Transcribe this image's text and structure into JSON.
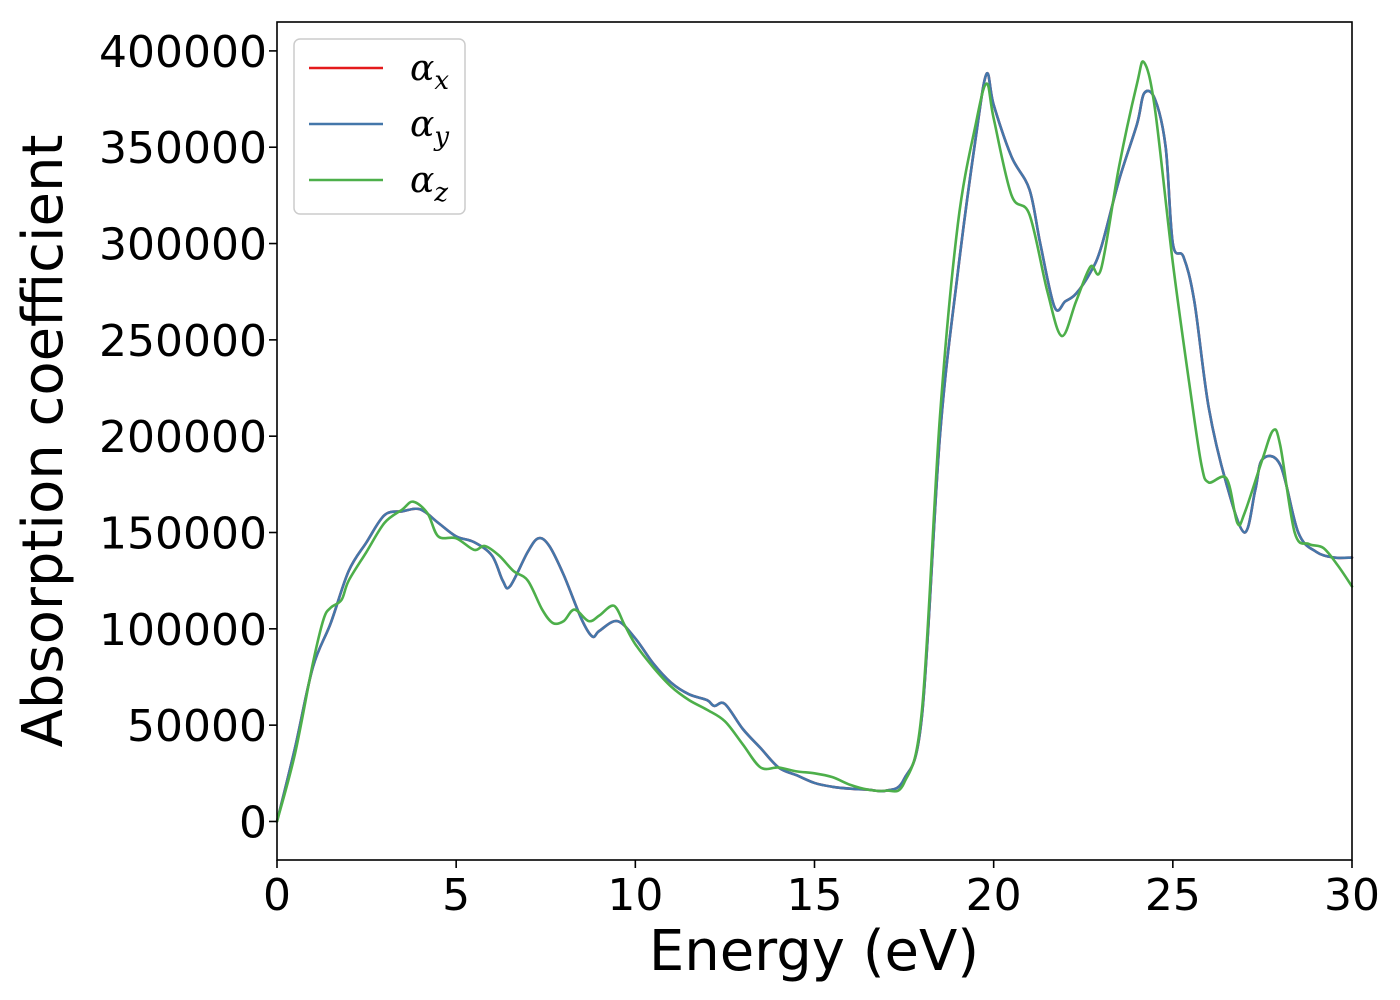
{
  "chart_data": {
    "type": "line",
    "xlabel": "Energy (eV)",
    "ylabel": "Absorption coefficient",
    "xlim": [
      0,
      30
    ],
    "ylim": [
      -20000,
      415000
    ],
    "xticks": [
      0,
      5,
      10,
      15,
      20,
      25,
      30
    ],
    "xtick_labels": [
      "0",
      "5",
      "10",
      "15",
      "20",
      "25",
      "30"
    ],
    "yticks": [
      0,
      50000,
      100000,
      150000,
      200000,
      250000,
      300000,
      350000,
      400000
    ],
    "ytick_labels": [
      "0",
      "50000",
      "100000",
      "150000",
      "200000",
      "250000",
      "300000",
      "350000",
      "400000"
    ],
    "grid": false,
    "legend_position": "top-left",
    "series": [
      {
        "name": "α_x",
        "legend_base": "α",
        "legend_sub": "x",
        "color": "#e41a1c",
        "points": [
          [
            0,
            0
          ],
          [
            0.5,
            38000
          ],
          [
            1,
            80000
          ],
          [
            1.5,
            103000
          ],
          [
            2,
            130000
          ],
          [
            2.5,
            145000
          ],
          [
            3,
            159000
          ],
          [
            3.5,
            161000
          ],
          [
            4,
            162000
          ],
          [
            4.5,
            155000
          ],
          [
            5,
            148000
          ],
          [
            5.5,
            145000
          ],
          [
            6,
            138000
          ],
          [
            6.3,
            125000
          ],
          [
            6.5,
            122000
          ],
          [
            7,
            140000
          ],
          [
            7.3,
            147000
          ],
          [
            7.6,
            143000
          ],
          [
            8,
            128000
          ],
          [
            8.5,
            105000
          ],
          [
            8.8,
            96000
          ],
          [
            9,
            99000
          ],
          [
            9.5,
            104000
          ],
          [
            10,
            95000
          ],
          [
            10.5,
            82000
          ],
          [
            11,
            72000
          ],
          [
            11.5,
            66000
          ],
          [
            12,
            63000
          ],
          [
            12.2,
            60000
          ],
          [
            12.5,
            61000
          ],
          [
            13,
            48000
          ],
          [
            13.5,
            38000
          ],
          [
            14,
            28000
          ],
          [
            14.5,
            24000
          ],
          [
            15,
            20000
          ],
          [
            15.5,
            18000
          ],
          [
            16,
            17000
          ],
          [
            16.5,
            16500
          ],
          [
            17,
            16000
          ],
          [
            17.5,
            22000
          ],
          [
            18,
            55000
          ],
          [
            18.5,
            200000
          ],
          [
            19,
            285000
          ],
          [
            19.5,
            355000
          ],
          [
            19.8,
            388000
          ],
          [
            20,
            372000
          ],
          [
            20.5,
            345000
          ],
          [
            21,
            328000
          ],
          [
            21.3,
            300000
          ],
          [
            21.7,
            267000
          ],
          [
            22,
            270000
          ],
          [
            22.3,
            274000
          ],
          [
            22.7,
            285000
          ],
          [
            23,
            298000
          ],
          [
            23.5,
            333000
          ],
          [
            24,
            362000
          ],
          [
            24.2,
            378000
          ],
          [
            24.5,
            375000
          ],
          [
            24.8,
            350000
          ],
          [
            25,
            300000
          ],
          [
            25.3,
            293000
          ],
          [
            25.6,
            270000
          ],
          [
            26,
            215000
          ],
          [
            26.5,
            175000
          ],
          [
            27,
            150000
          ],
          [
            27.3,
            172000
          ],
          [
            27.5,
            188000
          ],
          [
            28,
            185000
          ],
          [
            28.5,
            150000
          ],
          [
            29,
            140000
          ],
          [
            29.5,
            137000
          ],
          [
            30,
            137000
          ]
        ]
      },
      {
        "name": "α_y",
        "legend_base": "α",
        "legend_sub": "y",
        "color": "#4477aa",
        "points": [
          [
            0,
            0
          ],
          [
            0.5,
            38000
          ],
          [
            1,
            80000
          ],
          [
            1.5,
            103000
          ],
          [
            2,
            130000
          ],
          [
            2.5,
            145000
          ],
          [
            3,
            159000
          ],
          [
            3.5,
            161000
          ],
          [
            4,
            162000
          ],
          [
            4.5,
            155000
          ],
          [
            5,
            148000
          ],
          [
            5.5,
            145000
          ],
          [
            6,
            138000
          ],
          [
            6.3,
            125000
          ],
          [
            6.5,
            122000
          ],
          [
            7,
            140000
          ],
          [
            7.3,
            147000
          ],
          [
            7.6,
            143000
          ],
          [
            8,
            128000
          ],
          [
            8.5,
            105000
          ],
          [
            8.8,
            96000
          ],
          [
            9,
            99000
          ],
          [
            9.5,
            104000
          ],
          [
            10,
            95000
          ],
          [
            10.5,
            82000
          ],
          [
            11,
            72000
          ],
          [
            11.5,
            66000
          ],
          [
            12,
            63000
          ],
          [
            12.2,
            60000
          ],
          [
            12.5,
            61000
          ],
          [
            13,
            48000
          ],
          [
            13.5,
            38000
          ],
          [
            14,
            28000
          ],
          [
            14.5,
            24000
          ],
          [
            15,
            20000
          ],
          [
            15.5,
            18000
          ],
          [
            16,
            17000
          ],
          [
            16.5,
            16500
          ],
          [
            17,
            16000
          ],
          [
            17.5,
            22000
          ],
          [
            18,
            55000
          ],
          [
            18.5,
            200000
          ],
          [
            19,
            285000
          ],
          [
            19.5,
            355000
          ],
          [
            19.8,
            388000
          ],
          [
            20,
            372000
          ],
          [
            20.5,
            345000
          ],
          [
            21,
            328000
          ],
          [
            21.3,
            300000
          ],
          [
            21.7,
            267000
          ],
          [
            22,
            270000
          ],
          [
            22.3,
            274000
          ],
          [
            22.7,
            285000
          ],
          [
            23,
            298000
          ],
          [
            23.5,
            333000
          ],
          [
            24,
            362000
          ],
          [
            24.2,
            378000
          ],
          [
            24.5,
            375000
          ],
          [
            24.8,
            350000
          ],
          [
            25,
            300000
          ],
          [
            25.3,
            293000
          ],
          [
            25.6,
            270000
          ],
          [
            26,
            215000
          ],
          [
            26.5,
            175000
          ],
          [
            27,
            150000
          ],
          [
            27.3,
            172000
          ],
          [
            27.5,
            188000
          ],
          [
            28,
            185000
          ],
          [
            28.5,
            150000
          ],
          [
            29,
            140000
          ],
          [
            29.5,
            137000
          ],
          [
            30,
            137000
          ]
        ]
      },
      {
        "name": "α_z",
        "legend_base": "α",
        "legend_sub": "z",
        "color": "#4daf4a",
        "points": [
          [
            0,
            0
          ],
          [
            0.5,
            35000
          ],
          [
            1,
            82000
          ],
          [
            1.3,
            105000
          ],
          [
            1.5,
            111000
          ],
          [
            1.8,
            115000
          ],
          [
            2,
            125000
          ],
          [
            2.5,
            140000
          ],
          [
            3,
            155000
          ],
          [
            3.5,
            162000
          ],
          [
            3.8,
            166000
          ],
          [
            4.2,
            160000
          ],
          [
            4.5,
            148000
          ],
          [
            5,
            147000
          ],
          [
            5.5,
            141000
          ],
          [
            5.8,
            143000
          ],
          [
            6.2,
            138000
          ],
          [
            6.6,
            130000
          ],
          [
            7,
            125000
          ],
          [
            7.4,
            110000
          ],
          [
            7.7,
            103000
          ],
          [
            8,
            104000
          ],
          [
            8.3,
            110000
          ],
          [
            8.7,
            104000
          ],
          [
            9,
            107000
          ],
          [
            9.4,
            112000
          ],
          [
            9.7,
            102000
          ],
          [
            10,
            92000
          ],
          [
            10.5,
            80000
          ],
          [
            11,
            70000
          ],
          [
            11.5,
            63000
          ],
          [
            12,
            58000
          ],
          [
            12.5,
            52000
          ],
          [
            13,
            40000
          ],
          [
            13.5,
            28000
          ],
          [
            14,
            28000
          ],
          [
            14.5,
            26000
          ],
          [
            15,
            25000
          ],
          [
            15.5,
            23000
          ],
          [
            16,
            19000
          ],
          [
            16.5,
            16500
          ],
          [
            17,
            16000
          ],
          [
            17.5,
            20000
          ],
          [
            18,
            58000
          ],
          [
            18.5,
            210000
          ],
          [
            19,
            310000
          ],
          [
            19.5,
            362000
          ],
          [
            19.8,
            383000
          ],
          [
            20,
            365000
          ],
          [
            20.5,
            325000
          ],
          [
            21,
            315000
          ],
          [
            21.5,
            275000
          ],
          [
            21.9,
            252000
          ],
          [
            22.3,
            270000
          ],
          [
            22.7,
            288000
          ],
          [
            23,
            287000
          ],
          [
            23.5,
            340000
          ],
          [
            24,
            383000
          ],
          [
            24.2,
            394000
          ],
          [
            24.5,
            370000
          ],
          [
            25,
            290000
          ],
          [
            25.5,
            222000
          ],
          [
            25.8,
            185000
          ],
          [
            26,
            176000
          ],
          [
            26.5,
            178000
          ],
          [
            26.8,
            155000
          ],
          [
            27,
            160000
          ],
          [
            27.5,
            188000
          ],
          [
            27.8,
            203000
          ],
          [
            28,
            195000
          ],
          [
            28.4,
            150000
          ],
          [
            28.8,
            144000
          ],
          [
            29.2,
            142000
          ],
          [
            29.6,
            133000
          ],
          [
            30,
            122000
          ]
        ]
      }
    ]
  }
}
